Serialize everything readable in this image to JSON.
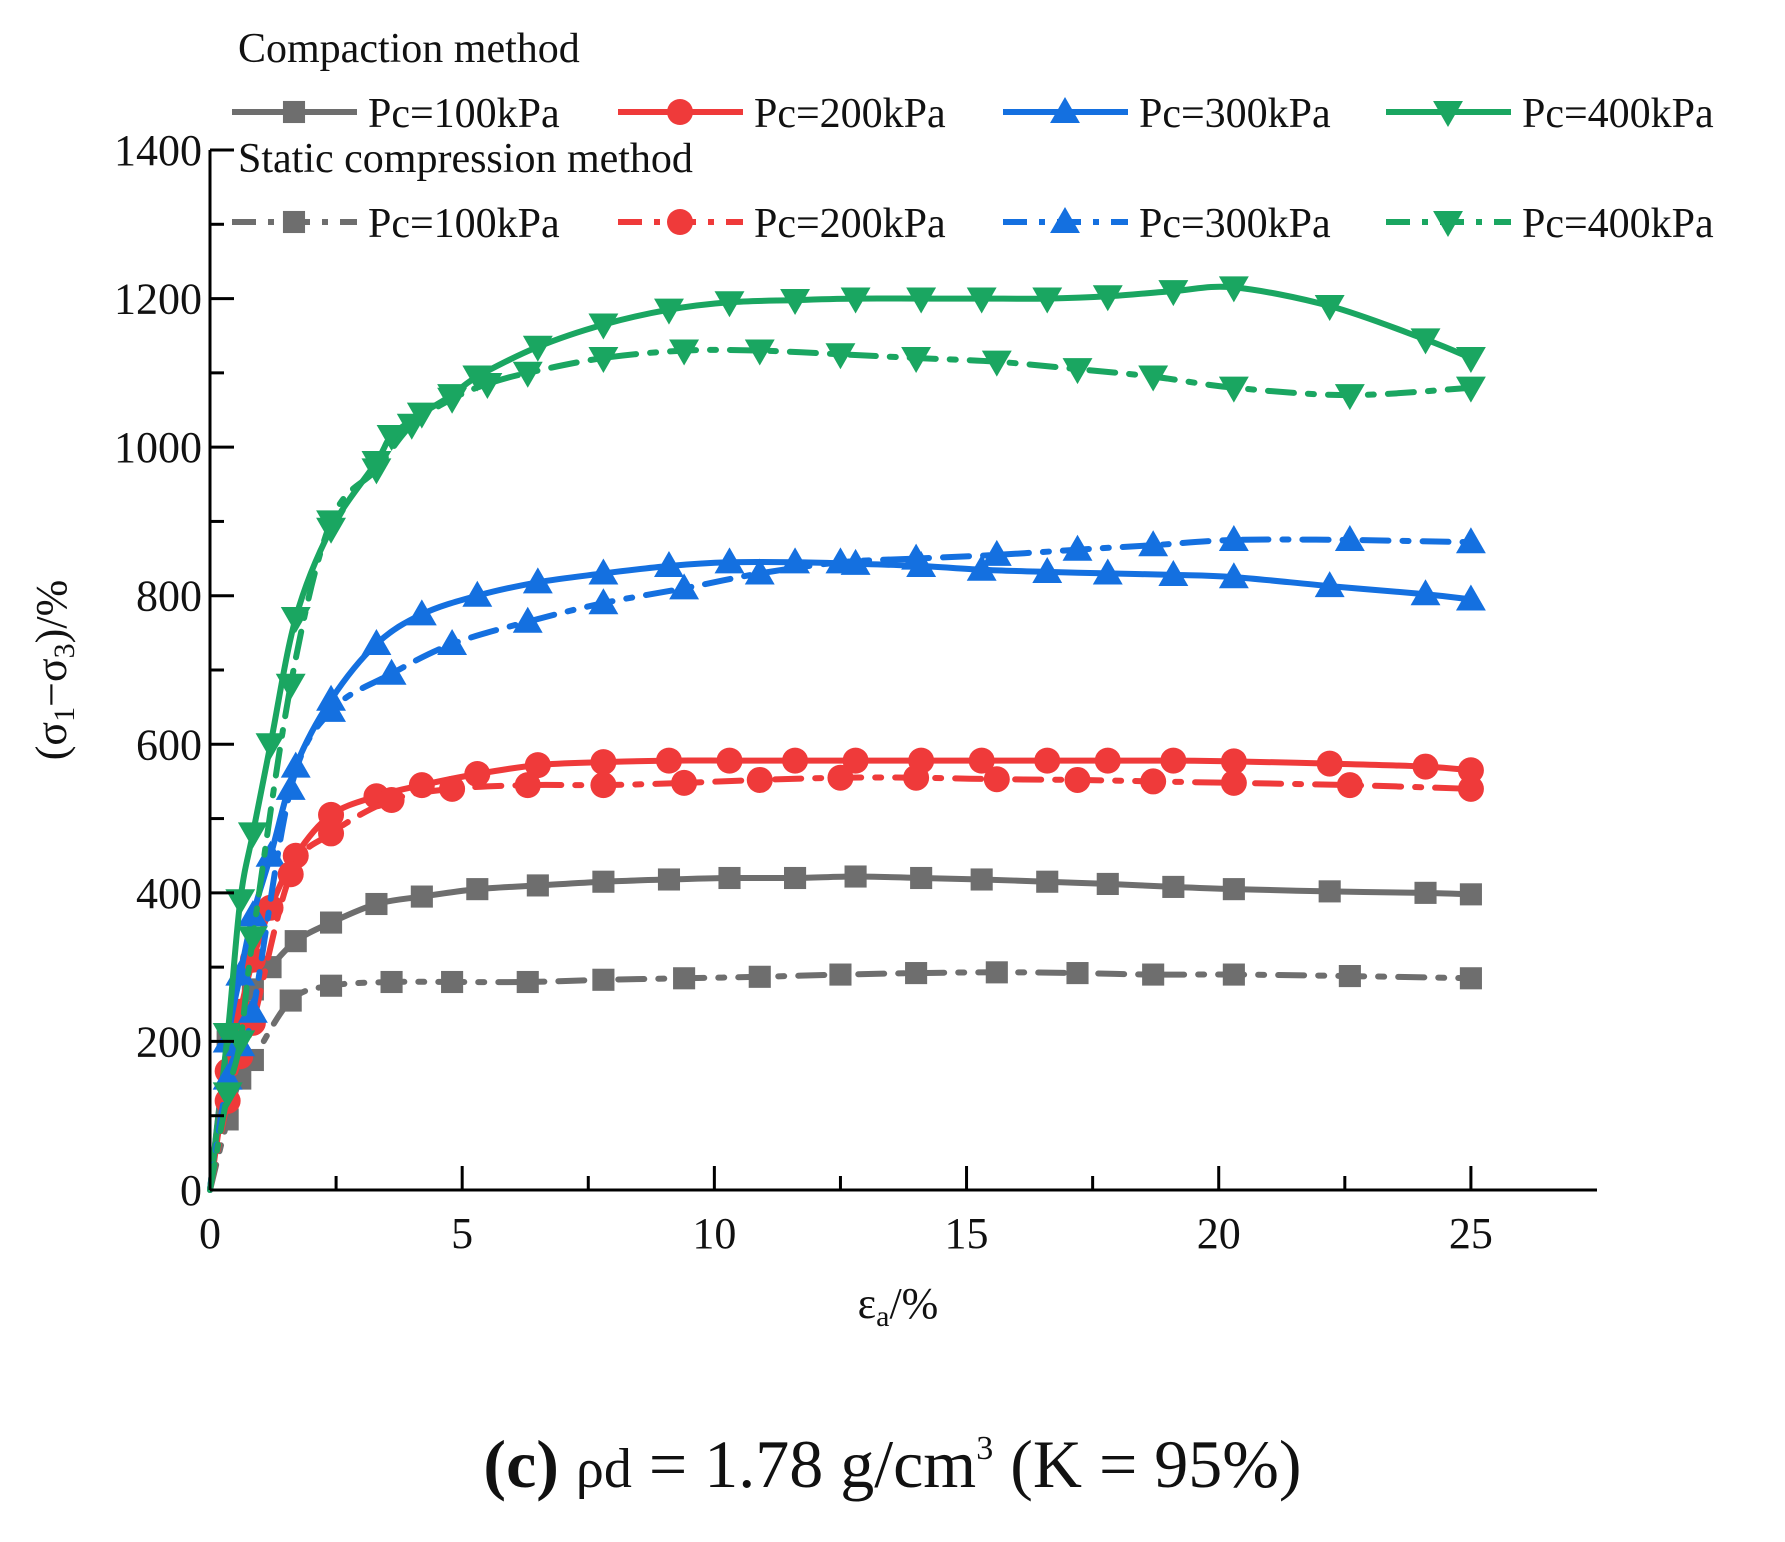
{
  "chart_data": {
    "type": "line",
    "xlabel": "εa/%",
    "xlabel_main": "ε",
    "xlabel_sub": "a",
    "xlabel_rest": "/%",
    "ylabel": "(σ1−σ3)/%",
    "ylabel_p1": "(σ",
    "ylabel_s1": "1",
    "ylabel_p2": "−σ",
    "ylabel_s2": "3",
    "ylabel_p3": ")/%",
    "xlim": [
      0,
      27.5
    ],
    "ylim": [
      0,
      1400
    ],
    "xticks": [
      0,
      5,
      10,
      15,
      20,
      25
    ],
    "yticks": [
      0,
      200,
      400,
      600,
      800,
      1000,
      1200,
      1400
    ],
    "legend": {
      "group1_title": "Compaction method",
      "group2_title": "Static compression method",
      "placement": "top"
    },
    "caption": {
      "label": "(c)",
      "rho": "ρd",
      "equals_value": "= 1.78 g/cm",
      "exponent": "3",
      "tail": "(K = 95%)"
    },
    "series": [
      {
        "name": "Pc=100kPa",
        "group": "Compaction method",
        "color": "#6e6e6e",
        "dash": "solid",
        "marker": "square",
        "x": [
          0,
          0.35,
          0.6,
          0.85,
          1.2,
          1.7,
          2.4,
          3.3,
          4.2,
          5.3,
          6.5,
          7.8,
          9.1,
          10.3,
          11.6,
          12.8,
          14.1,
          15.3,
          16.6,
          17.8,
          19.1,
          20.3,
          22.2,
          24.1,
          25.0
        ],
        "y": [
          0,
          200,
          240,
          270,
          300,
          335,
          360,
          385,
          395,
          405,
          410,
          415,
          418,
          420,
          420,
          422,
          420,
          418,
          415,
          412,
          408,
          405,
          402,
          400,
          398
        ]
      },
      {
        "name": "Pc=200kPa",
        "group": "Compaction method",
        "color": "#ef3a3a",
        "dash": "solid",
        "marker": "circle",
        "x": [
          0,
          0.35,
          0.6,
          0.85,
          1.2,
          1.7,
          2.4,
          3.3,
          4.2,
          5.3,
          6.5,
          7.8,
          9.1,
          10.3,
          11.6,
          12.8,
          14.1,
          15.3,
          16.6,
          17.8,
          19.1,
          20.3,
          22.2,
          24.1,
          25.0
        ],
        "y": [
          0,
          160,
          240,
          310,
          380,
          450,
          505,
          530,
          545,
          560,
          572,
          576,
          578,
          578,
          578,
          578,
          578,
          578,
          578,
          578,
          578,
          577,
          574,
          570,
          565
        ]
      },
      {
        "name": "Pc=300kPa",
        "group": "Compaction method",
        "color": "#1470e0",
        "dash": "solid",
        "marker": "triangle-up",
        "x": [
          0,
          0.35,
          0.6,
          0.85,
          1.2,
          1.7,
          2.4,
          3.3,
          4.2,
          5.3,
          6.5,
          7.8,
          9.1,
          10.3,
          11.6,
          12.8,
          14.1,
          15.3,
          16.6,
          17.8,
          19.1,
          20.3,
          22.2,
          24.1,
          25.0
        ],
        "y": [
          0,
          200,
          290,
          370,
          450,
          570,
          660,
          735,
          775,
          800,
          818,
          830,
          840,
          845,
          845,
          843,
          840,
          835,
          832,
          830,
          828,
          825,
          813,
          802,
          795
        ]
      },
      {
        "name": "Pc=400kPa",
        "group": "Compaction method",
        "color": "#1aa661",
        "dash": "solid",
        "marker": "triangle-down",
        "x": [
          0,
          0.35,
          0.6,
          0.85,
          1.2,
          1.7,
          2.4,
          3.3,
          3.6,
          4.2,
          4.8,
          5.3,
          6.5,
          7.8,
          9.1,
          10.3,
          11.6,
          12.8,
          14.1,
          15.3,
          16.6,
          17.8,
          19.1,
          20.3,
          22.2,
          24.1,
          25.0
        ],
        "y": [
          0,
          210,
          390,
          480,
          600,
          770,
          890,
          980,
          1015,
          1045,
          1070,
          1095,
          1135,
          1165,
          1185,
          1195,
          1198,
          1200,
          1200,
          1200,
          1200,
          1203,
          1210,
          1215,
          1190,
          1145,
          1120
        ]
      },
      {
        "name": "Pc=100kPa",
        "group": "Static compression method",
        "color": "#6e6e6e",
        "dash": "dashed",
        "marker": "square",
        "x": [
          0,
          0.35,
          0.6,
          0.85,
          1.6,
          2.4,
          3.6,
          4.8,
          6.3,
          7.8,
          9.4,
          10.9,
          12.5,
          14.0,
          15.6,
          17.2,
          18.7,
          20.3,
          22.6,
          25.0
        ],
        "y": [
          0,
          95,
          150,
          175,
          255,
          275,
          280,
          280,
          280,
          283,
          285,
          287,
          290,
          292,
          293,
          292,
          290,
          290,
          288,
          285
        ]
      },
      {
        "name": "Pc=200kPa",
        "group": "Static compression method",
        "color": "#ef3a3a",
        "dash": "dashed",
        "marker": "circle",
        "x": [
          0,
          0.35,
          0.6,
          0.85,
          1.6,
          2.4,
          3.6,
          4.8,
          6.3,
          7.8,
          9.4,
          10.9,
          12.5,
          14.0,
          15.6,
          17.2,
          18.7,
          20.3,
          22.6,
          25.0
        ],
        "y": [
          0,
          120,
          180,
          225,
          425,
          480,
          525,
          540,
          545,
          545,
          548,
          552,
          555,
          555,
          553,
          552,
          550,
          548,
          545,
          540
        ]
      },
      {
        "name": "Pc=300kPa",
        "group": "Static compression method",
        "color": "#1470e0",
        "dash": "dashed",
        "marker": "triangle-up",
        "x": [
          0,
          0.35,
          0.6,
          0.85,
          1.6,
          2.4,
          3.6,
          4.8,
          6.3,
          7.8,
          9.4,
          10.9,
          12.5,
          14.0,
          15.6,
          17.2,
          18.7,
          20.3,
          22.6,
          25.0
        ],
        "y": [
          0,
          150,
          195,
          240,
          540,
          645,
          695,
          735,
          765,
          790,
          810,
          830,
          845,
          850,
          855,
          862,
          868,
          875,
          875,
          872
        ]
      },
      {
        "name": "Pc=400kPa",
        "group": "Static compression method",
        "color": "#1aa661",
        "dash": "dashed",
        "marker": "triangle-down",
        "x": [
          0,
          0.35,
          0.6,
          0.85,
          1.6,
          2.4,
          3.3,
          4.0,
          4.8,
          5.5,
          6.3,
          7.8,
          9.4,
          10.9,
          12.5,
          14.0,
          15.6,
          17.2,
          18.7,
          20.3,
          22.6,
          25.0
        ],
        "y": [
          0,
          130,
          200,
          340,
          680,
          900,
          970,
          1030,
          1065,
          1085,
          1100,
          1120,
          1130,
          1130,
          1125,
          1120,
          1115,
          1105,
          1095,
          1080,
          1070,
          1080
        ]
      }
    ]
  }
}
